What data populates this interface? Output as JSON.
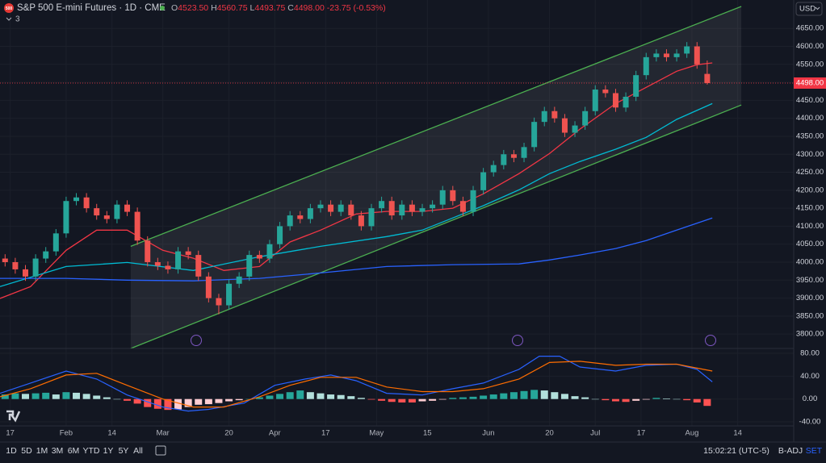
{
  "ui": {
    "symbol_badge": "500",
    "title": "S&P 500 E-mini Futures · 1D · CME",
    "ohlc": [
      {
        "key": "O",
        "value": "4523.50"
      },
      {
        "key": "H",
        "value": "4560.75"
      },
      {
        "key": "L",
        "value": "4493.75"
      },
      {
        "key": "C",
        "value": "4498.00"
      }
    ],
    "change": "-23.75 (-0.53%)",
    "indicators_count": "3",
    "currency": "USD",
    "ranges": [
      "1D",
      "5D",
      "1M",
      "3M",
      "6M",
      "YTD",
      "1Y",
      "5Y",
      "All"
    ],
    "time": "15:02:21 (UTC-5)",
    "adj": "B-ADJ",
    "set": "SET"
  },
  "chart_data": [
    {
      "type": "candlestick",
      "up_color": "#26a69a",
      "down_color": "#ef5350",
      "xlim": [
        -1,
        155
      ],
      "ylim": [
        3760,
        4729
      ],
      "yticks": [
        {
          "value": 3800,
          "label": "3800.00"
        },
        {
          "value": 3850,
          "label": "3850.00"
        },
        {
          "value": 3900,
          "label": "3900.00"
        },
        {
          "value": 3950,
          "label": "3950.00"
        },
        {
          "value": 4000,
          "label": "4000.00"
        },
        {
          "value": 4050,
          "label": "4050.00"
        },
        {
          "value": 4100,
          "label": "4100.00"
        },
        {
          "value": 4150,
          "label": "4150.00"
        },
        {
          "value": 4200,
          "label": "4200.00"
        },
        {
          "value": 4250,
          "label": "4250.00"
        },
        {
          "value": 4300,
          "label": "4300.00"
        },
        {
          "value": 4350,
          "label": "4350.00"
        },
        {
          "value": 4400,
          "label": "4400.00"
        },
        {
          "value": 4450,
          "label": "4450.00"
        },
        {
          "value": 4500,
          "label": "4500.00"
        },
        {
          "value": 4550,
          "label": "4550.00"
        },
        {
          "value": 4600,
          "label": "4600.00"
        },
        {
          "value": 4650,
          "label": "4650.00"
        }
      ],
      "xticks": [
        {
          "value": 1,
          "label": "17"
        },
        {
          "value": 12,
          "label": "Feb"
        },
        {
          "value": 21,
          "label": "14"
        },
        {
          "value": 31,
          "label": "Mar"
        },
        {
          "value": 44,
          "label": "20"
        },
        {
          "value": 53,
          "label": "Apr"
        },
        {
          "value": 63,
          "label": "17"
        },
        {
          "value": 73,
          "label": "May"
        },
        {
          "value": 83,
          "label": "15"
        },
        {
          "value": 95,
          "label": "Jun"
        },
        {
          "value": 107,
          "label": "20"
        },
        {
          "value": 116,
          "label": "Jul"
        },
        {
          "value": 125,
          "label": "17"
        },
        {
          "value": 135,
          "label": "Aug"
        },
        {
          "value": 144,
          "label": "14"
        }
      ],
      "x": [
        0,
        2,
        4,
        6,
        8,
        10,
        12,
        14,
        16,
        18,
        20,
        22,
        24,
        26,
        28,
        30,
        32,
        34,
        36,
        38,
        40,
        42,
        44,
        46,
        48,
        50,
        52,
        54,
        56,
        58,
        60,
        62,
        64,
        66,
        68,
        70,
        72,
        74,
        76,
        78,
        80,
        82,
        84,
        86,
        88,
        90,
        92,
        94,
        96,
        98,
        100,
        102,
        104,
        106,
        108,
        110,
        112,
        114,
        116,
        118,
        120,
        122,
        124,
        126,
        128,
        130,
        132,
        134,
        136,
        138
      ],
      "open": [
        4010,
        4000,
        3980,
        3960,
        4010,
        4030,
        4080,
        4170,
        4180,
        4150,
        4130,
        4120,
        4160,
        4140,
        4060,
        4000,
        3990,
        3980,
        4030,
        4020,
        3960,
        3900,
        3880,
        3940,
        3960,
        4020,
        4010,
        4050,
        4100,
        4130,
        4120,
        4150,
        4160,
        4140,
        4160,
        4130,
        4100,
        4150,
        4170,
        4130,
        4160,
        4140,
        4150,
        4160,
        4200,
        4170,
        4140,
        4200,
        4250,
        4270,
        4300,
        4290,
        4320,
        4390,
        4420,
        4400,
        4360,
        4380,
        4420,
        4480,
        4470,
        4430,
        4460,
        4520,
        4570,
        4580,
        4570,
        4580,
        4600,
        4523.5
      ],
      "high": [
        4022,
        4012,
        3992,
        4022,
        4042,
        4092,
        4182,
        4192,
        4192,
        4162,
        4142,
        4172,
        4172,
        4152,
        4072,
        4012,
        4002,
        4042,
        4042,
        4032,
        3972,
        3912,
        3952,
        3972,
        4032,
        4032,
        4062,
        4112,
        4142,
        4142,
        4162,
        4172,
        4172,
        4172,
        4172,
        4142,
        4162,
        4182,
        4182,
        4172,
        4172,
        4162,
        4172,
        4212,
        4212,
        4182,
        4212,
        4262,
        4282,
        4312,
        4312,
        4332,
        4402,
        4432,
        4432,
        4412,
        4392,
        4432,
        4492,
        4492,
        4482,
        4472,
        4532,
        4582,
        4592,
        4592,
        4592,
        4612,
        4612,
        4560.75
      ],
      "low": [
        3988,
        3968,
        3948,
        3948,
        3998,
        4018,
        4068,
        4158,
        4138,
        4118,
        4108,
        4108,
        4128,
        4048,
        3988,
        3978,
        3968,
        3968,
        4008,
        3948,
        3888,
        3855,
        3868,
        3928,
        3948,
        3998,
        3998,
        4038,
        4088,
        4108,
        4108,
        4138,
        4128,
        4128,
        4118,
        4088,
        4088,
        4138,
        4118,
        4118,
        4128,
        4128,
        4138,
        4148,
        4158,
        4128,
        4128,
        4188,
        4238,
        4258,
        4278,
        4278,
        4308,
        4378,
        4388,
        4348,
        4348,
        4368,
        4408,
        4458,
        4418,
        4418,
        4448,
        4508,
        4558,
        4558,
        4558,
        4568,
        4538,
        4493.75
      ],
      "close": [
        4000,
        3980,
        3960,
        4010,
        4030,
        4080,
        4170,
        4180,
        4150,
        4130,
        4120,
        4160,
        4140,
        4060,
        4000,
        3990,
        3980,
        4030,
        4020,
        3960,
        3900,
        3880,
        3940,
        3960,
        4020,
        4010,
        4050,
        4100,
        4130,
        4120,
        4150,
        4160,
        4140,
        4160,
        4130,
        4100,
        4150,
        4170,
        4130,
        4160,
        4140,
        4150,
        4160,
        4200,
        4170,
        4140,
        4200,
        4250,
        4270,
        4300,
        4290,
        4320,
        4390,
        4420,
        4400,
        4360,
        4380,
        4420,
        4480,
        4470,
        4430,
        4460,
        4520,
        4570,
        4580,
        4570,
        4580,
        4600,
        4550,
        4498
      ],
      "lines": [
        {
          "color": "#f23645",
          "x": [
            -1,
            5,
            12,
            18,
            24,
            31,
            37,
            43,
            50,
            56,
            62,
            69,
            75,
            82,
            88,
            94,
            101,
            107,
            113,
            120,
            126,
            132,
            136,
            139
          ],
          "values": [
            3899,
            3932,
            4033,
            4089,
            4089,
            4033,
            4011,
            3977,
            3988,
            4056,
            4089,
            4134,
            4141,
            4141,
            4150,
            4190,
            4246,
            4302,
            4370,
            4441,
            4486,
            4531,
            4549,
            4554
          ]
        },
        {
          "color": "#00bcd4",
          "x": [
            -1,
            12,
            24,
            37,
            50,
            62,
            75,
            82,
            88,
            94,
            101,
            107,
            113,
            120,
            126,
            132,
            139
          ],
          "values": [
            3932,
            3988,
            3999,
            3977,
            4015,
            4044,
            4071,
            4089,
            4123,
            4157,
            4201,
            4246,
            4280,
            4314,
            4347,
            4397,
            4441
          ]
        },
        {
          "color": "#2962ff",
          "x": [
            -1,
            12,
            24,
            37,
            50,
            62,
            75,
            88,
            101,
            107,
            113,
            120,
            126,
            132,
            139
          ],
          "values": [
            3955,
            3955,
            3950,
            3948,
            3955,
            3970,
            3988,
            3993,
            3995,
            4006,
            4020,
            4038,
            4060,
            4089,
            4123
          ]
        }
      ],
      "channel": {
        "color": "#4caf50",
        "upper": {
          "x": [
            24.7,
            144.7
          ],
          "values": [
            4044,
            4711
          ]
        },
        "lower": {
          "x": [
            24.7,
            144.7
          ],
          "values": [
            3760,
            4437
          ]
        }
      },
      "last_price": {
        "value": 4498,
        "label": "4498.00",
        "color": "#f23645"
      }
    },
    {
      "type": "macd",
      "xlim": [
        -1,
        155
      ],
      "ylim": [
        -47,
        88.5
      ],
      "yticks": [
        {
          "value": 80,
          "label": "80.00"
        },
        {
          "value": 40,
          "label": "40.00"
        },
        {
          "value": 0,
          "label": "0.00"
        },
        {
          "value": -40,
          "label": "-40.00"
        }
      ],
      "histogram": {
        "colors": [
          "#26a69a",
          "#b2dfdb",
          "#ffcdd2",
          "#ff5252"
        ],
        "x": [
          0,
          2,
          4,
          6,
          8,
          10,
          12,
          14,
          16,
          18,
          20,
          22,
          24,
          26,
          28,
          30,
          32,
          34,
          36,
          38,
          40,
          42,
          44,
          46,
          48,
          50,
          52,
          54,
          56,
          58,
          60,
          62,
          64,
          66,
          68,
          70,
          72,
          74,
          76,
          78,
          80,
          82,
          84,
          86,
          88,
          90,
          92,
          94,
          96,
          98,
          100,
          102,
          104,
          106,
          108,
          110,
          112,
          114,
          116,
          118,
          120,
          122,
          124,
          126,
          128,
          130,
          132,
          134,
          136,
          138
        ],
        "values": [
          8,
          10,
          9,
          10,
          11,
          8,
          12,
          11,
          9,
          6,
          3,
          0,
          -3,
          -8,
          -14,
          -17,
          -19,
          -18,
          -14,
          -10,
          -9,
          -7,
          -4,
          -2,
          0,
          3,
          6,
          9,
          12,
          15,
          12,
          10,
          8,
          7,
          5,
          2,
          -1,
          -3,
          -5,
          -6,
          -6,
          -4,
          -3,
          -1,
          2,
          3,
          4,
          6,
          8,
          10,
          12,
          14,
          16,
          15,
          12,
          9,
          5,
          3,
          0,
          -2,
          -4,
          -5,
          -3,
          -1,
          2,
          1,
          0,
          -2,
          -6,
          -12
        ]
      },
      "macd": {
        "color": "#2962ff",
        "x": [
          -1,
          5,
          12,
          18,
          24,
          31,
          36,
          40,
          47,
          53,
          59,
          64,
          69,
          75,
          82,
          88,
          94,
          101,
          105,
          109,
          113,
          120,
          126,
          132,
          136,
          139
        ],
        "values": [
          10,
          28,
          49,
          35,
          7,
          -14,
          -21,
          -18,
          -7,
          24,
          35,
          42,
          32,
          10,
          7,
          18,
          28,
          52,
          75,
          75,
          56,
          49,
          59,
          61,
          52,
          30
        ]
      },
      "signal": {
        "color": "#ff6d00",
        "x": [
          -1,
          5,
          12,
          18,
          24,
          31,
          37,
          43,
          50,
          56,
          62,
          69,
          75,
          82,
          88,
          94,
          101,
          107,
          113,
          120,
          126,
          132,
          139
        ],
        "values": [
          4,
          18,
          42,
          45,
          24,
          0,
          -14,
          -14,
          4,
          24,
          38,
          38,
          21,
          13,
          13,
          18,
          35,
          64,
          66,
          59,
          61,
          61,
          49
        ]
      }
    }
  ]
}
